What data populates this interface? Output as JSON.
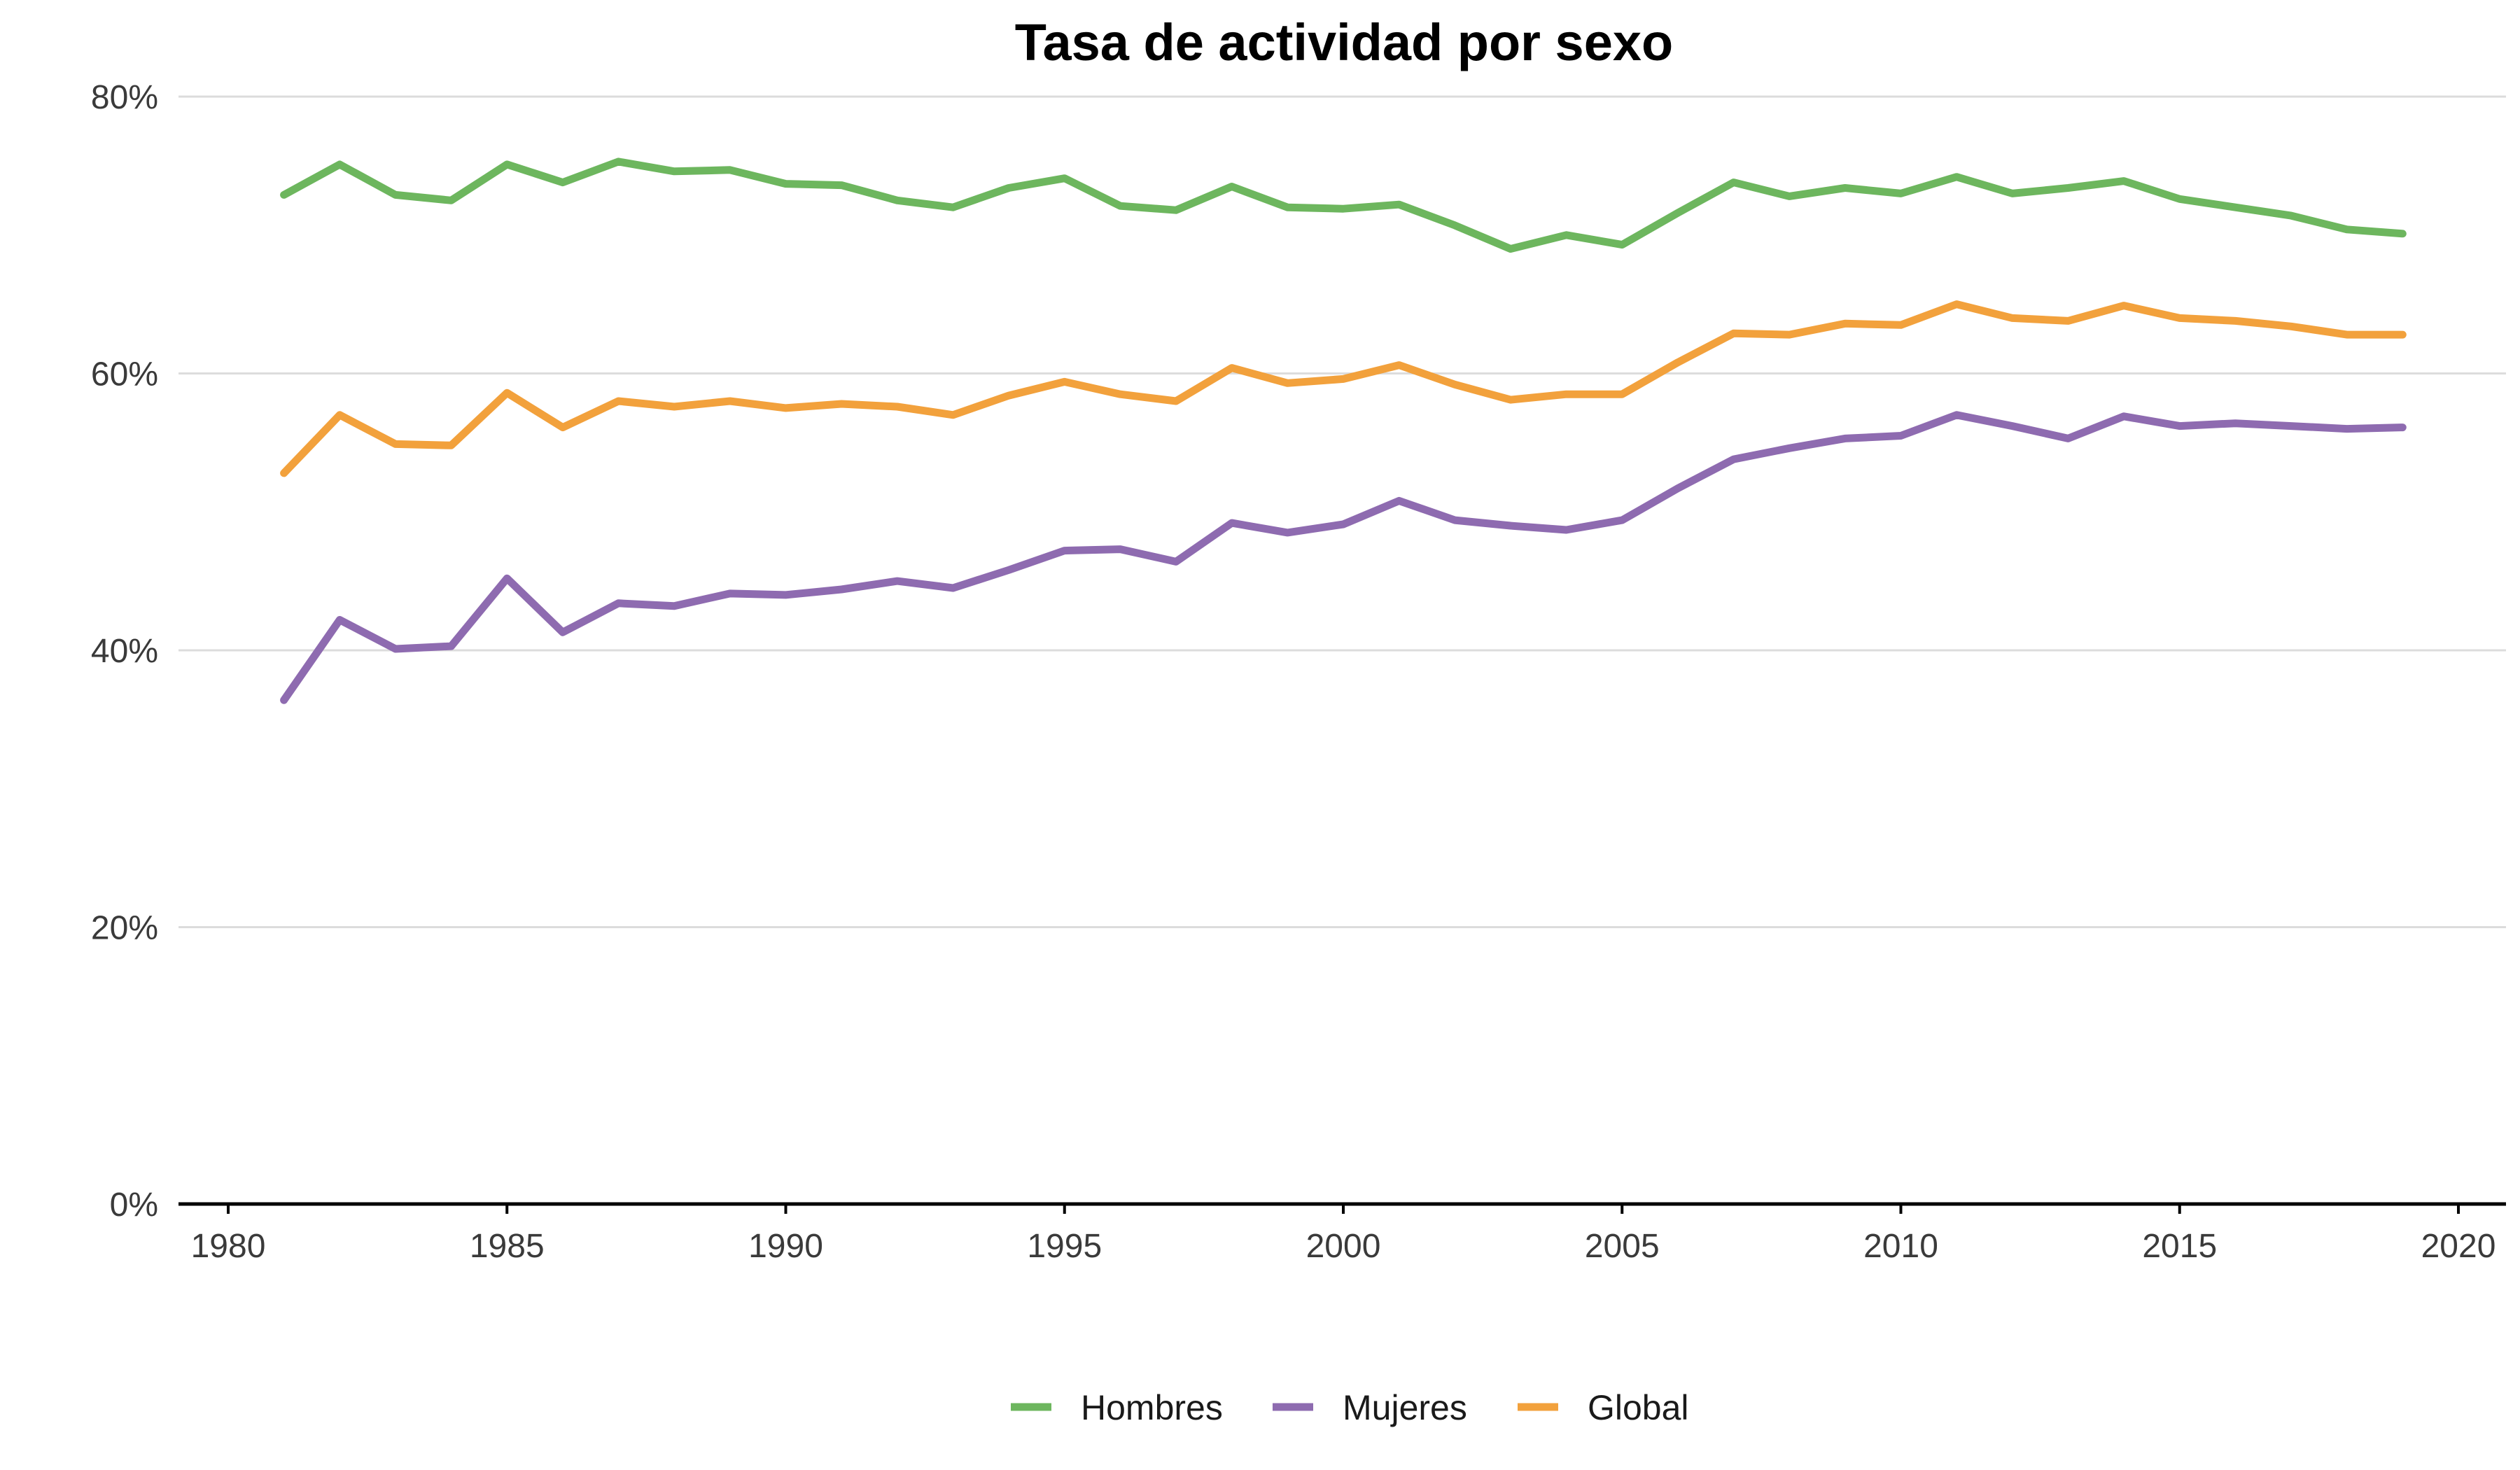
{
  "chart_data": {
    "type": "line",
    "title": "Tasa de actividad por sexo",
    "xlabel": "",
    "ylabel": "",
    "xlim": [
      1980,
      2020
    ],
    "ylim": [
      0,
      80
    ],
    "x_ticks": [
      1980,
      1985,
      1990,
      1995,
      2000,
      2005,
      2010,
      2015,
      2020
    ],
    "x_tick_labels": [
      "1980",
      "1985",
      "1990",
      "1995",
      "2000",
      "2005",
      "2010",
      "2015",
      "2020"
    ],
    "y_ticks": [
      0,
      20,
      40,
      60,
      80
    ],
    "y_tick_labels": [
      "0%",
      "20%",
      "40%",
      "60%",
      "80%"
    ],
    "grid": "horizontal",
    "legend_position": "bottom",
    "x": [
      1981,
      1982,
      1983,
      1984,
      1985,
      1986,
      1987,
      1988,
      1989,
      1990,
      1991,
      1992,
      1993,
      1994,
      1995,
      1996,
      1997,
      1998,
      1999,
      2000,
      2001,
      2002,
      2003,
      2004,
      2005,
      2006,
      2007,
      2008,
      2009,
      2010,
      2011,
      2012,
      2013,
      2014,
      2015,
      2016,
      2017,
      2018,
      2019
    ],
    "series": [
      {
        "name": "Hombres",
        "color": "#6db65e",
        "values": [
          72.9,
          75.1,
          72.9,
          72.5,
          75.1,
          73.8,
          75.3,
          74.6,
          74.7,
          73.7,
          73.6,
          72.5,
          72.0,
          73.4,
          74.1,
          72.1,
          71.8,
          73.5,
          72.0,
          71.9,
          72.2,
          70.7,
          69.0,
          70.0,
          69.3,
          71.6,
          73.8,
          72.8,
          73.4,
          73.0,
          74.2,
          73.0,
          73.4,
          73.9,
          72.6,
          72.0,
          71.4,
          70.4,
          70.1
        ]
      },
      {
        "name": "Mujeres",
        "color": "#8e6bb0",
        "values": [
          36.4,
          42.2,
          40.1,
          40.3,
          45.2,
          41.3,
          43.4,
          43.2,
          44.1,
          44.0,
          44.4,
          45.0,
          44.5,
          45.8,
          47.2,
          47.3,
          46.4,
          49.2,
          48.5,
          49.1,
          50.8,
          49.4,
          49.0,
          48.7,
          49.4,
          51.7,
          53.8,
          54.6,
          55.3,
          55.5,
          57.0,
          56.2,
          55.3,
          56.9,
          56.2,
          56.4,
          56.2,
          56.0,
          56.1
        ]
      },
      {
        "name": "Global",
        "color": "#f2a13c",
        "values": [
          52.8,
          57.0,
          54.9,
          54.8,
          58.6,
          56.1,
          58.0,
          57.6,
          58.0,
          57.5,
          57.8,
          57.6,
          57.0,
          58.4,
          59.4,
          58.5,
          58.0,
          60.4,
          59.3,
          59.6,
          60.6,
          59.2,
          58.1,
          58.5,
          58.5,
          60.8,
          62.9,
          62.8,
          63.6,
          63.5,
          65.0,
          64.0,
          63.8,
          64.9,
          64.0,
          63.8,
          63.4,
          62.8,
          62.8
        ]
      }
    ]
  }
}
